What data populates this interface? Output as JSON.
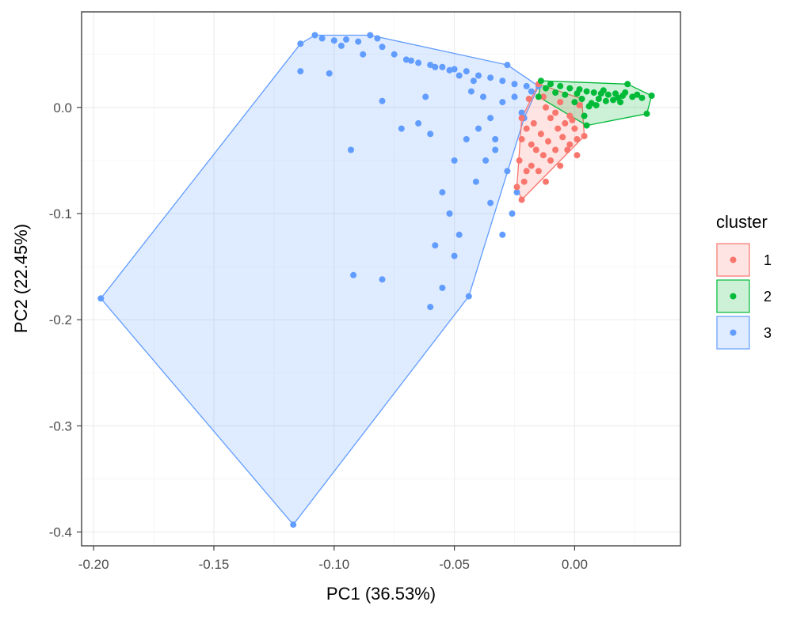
{
  "chart_data": {
    "type": "scatter",
    "xlabel": "PC1 (36.53%)",
    "ylabel": "PC2 (22.45%)",
    "xlim": [
      -0.205,
      0.044
    ],
    "ylim": [
      -0.413,
      0.09
    ],
    "x_ticks": [
      -0.2,
      -0.15,
      -0.1,
      -0.05,
      0.0
    ],
    "x_tick_labels": [
      "-0.20",
      "-0.15",
      "-0.10",
      "-0.05",
      "0.00"
    ],
    "y_ticks": [
      0.0,
      -0.1,
      -0.2,
      -0.3,
      -0.4
    ],
    "y_tick_labels": [
      "0.0",
      "-0.1",
      "-0.2",
      "-0.3",
      "-0.4"
    ],
    "grid": true,
    "legend": {
      "title": "cluster",
      "position": "right",
      "items": [
        {
          "label": "1",
          "color": "#F8766D"
        },
        {
          "label": "2",
          "color": "#00BA38"
        },
        {
          "label": "3",
          "color": "#619CFF"
        }
      ]
    },
    "series": [
      {
        "name": "1",
        "color": "#F8766D",
        "hull": [
          [
            -0.015,
            0.022
          ],
          [
            0.003,
            0.008
          ],
          [
            0.004,
            -0.027
          ],
          [
            -0.022,
            -0.087
          ],
          [
            -0.024,
            -0.075
          ],
          [
            -0.022,
            -0.01
          ]
        ],
        "points": [
          [
            -0.015,
            0.022
          ],
          [
            -0.013,
            0.01
          ],
          [
            -0.012,
            0.0
          ],
          [
            -0.01,
            -0.01
          ],
          [
            -0.008,
            -0.005
          ],
          [
            -0.006,
            0.005
          ],
          [
            -0.004,
            -0.015
          ],
          [
            -0.002,
            -0.008
          ],
          [
            0.0,
            -0.02
          ],
          [
            0.002,
            0.002
          ],
          [
            0.003,
            0.008
          ],
          [
            0.004,
            -0.027
          ],
          [
            0.001,
            -0.03
          ],
          [
            -0.002,
            -0.035
          ],
          [
            -0.005,
            -0.028
          ],
          [
            -0.008,
            -0.04
          ],
          [
            -0.011,
            -0.032
          ],
          [
            -0.013,
            -0.045
          ],
          [
            -0.016,
            -0.04
          ],
          [
            -0.018,
            -0.055
          ],
          [
            -0.02,
            -0.06
          ],
          [
            -0.021,
            -0.07
          ],
          [
            -0.022,
            -0.087
          ],
          [
            -0.024,
            -0.075
          ],
          [
            -0.023,
            -0.05
          ],
          [
            -0.022,
            -0.03
          ],
          [
            -0.022,
            -0.01
          ],
          [
            -0.019,
            0.008
          ],
          [
            -0.017,
            -0.015
          ],
          [
            -0.014,
            -0.025
          ],
          [
            -0.01,
            -0.05
          ],
          [
            -0.007,
            -0.02
          ],
          [
            -0.003,
            -0.04
          ],
          [
            -0.001,
            -0.012
          ],
          [
            0.001,
            -0.045
          ],
          [
            -0.015,
            -0.06
          ],
          [
            -0.018,
            -0.035
          ],
          [
            -0.02,
            -0.02
          ],
          [
            -0.012,
            -0.07
          ],
          [
            -0.006,
            -0.055
          ]
        ]
      },
      {
        "name": "2",
        "color": "#00BA38",
        "hull": [
          [
            -0.014,
            0.025
          ],
          [
            0.022,
            0.022
          ],
          [
            0.032,
            0.011
          ],
          [
            0.03,
            -0.006
          ],
          [
            0.005,
            -0.017
          ],
          [
            -0.015,
            0.01
          ]
        ],
        "points": [
          [
            -0.014,
            0.025
          ],
          [
            -0.01,
            0.022
          ],
          [
            -0.006,
            0.02
          ],
          [
            -0.002,
            0.018
          ],
          [
            0.002,
            0.017
          ],
          [
            0.005,
            0.015
          ],
          [
            0.008,
            0.014
          ],
          [
            0.011,
            0.013
          ],
          [
            0.014,
            0.012
          ],
          [
            0.017,
            0.013
          ],
          [
            0.02,
            0.011
          ],
          [
            0.022,
            0.022
          ],
          [
            0.024,
            0.01
          ],
          [
            0.026,
            0.012
          ],
          [
            0.028,
            0.009
          ],
          [
            0.032,
            0.011
          ],
          [
            0.03,
            -0.006
          ],
          [
            0.005,
            -0.017
          ],
          [
            0.0,
            0.005
          ],
          [
            0.003,
            0.008
          ],
          [
            -0.004,
            0.012
          ],
          [
            0.007,
            0.004
          ],
          [
            0.01,
            0.008
          ],
          [
            0.013,
            0.006
          ],
          [
            0.016,
            0.007
          ],
          [
            0.019,
            0.005
          ],
          [
            -0.008,
            0.014
          ],
          [
            -0.012,
            0.018
          ],
          [
            0.004,
            -0.008
          ],
          [
            0.006,
            0.001
          ],
          [
            0.009,
            0.002
          ],
          [
            -0.015,
            0.01
          ],
          [
            0.001,
            0.013
          ],
          [
            0.012,
            0.016
          ],
          [
            0.018,
            0.009
          ],
          [
            0.021,
            0.014
          ]
        ]
      },
      {
        "name": "3",
        "color": "#619CFF",
        "hull": [
          [
            -0.108,
            0.068
          ],
          [
            -0.085,
            0.068
          ],
          [
            -0.028,
            0.04
          ],
          [
            -0.015,
            0.02
          ],
          [
            -0.021,
            -0.01
          ],
          [
            -0.044,
            -0.178
          ],
          [
            -0.117,
            -0.393
          ],
          [
            -0.197,
            -0.18
          ],
          [
            -0.114,
            0.06
          ]
        ],
        "points": [
          [
            -0.108,
            0.068
          ],
          [
            -0.105,
            0.065
          ],
          [
            -0.1,
            0.063
          ],
          [
            -0.095,
            0.064
          ],
          [
            -0.09,
            0.062
          ],
          [
            -0.085,
            0.068
          ],
          [
            -0.082,
            0.065
          ],
          [
            -0.08,
            0.057
          ],
          [
            -0.075,
            0.05
          ],
          [
            -0.07,
            0.045
          ],
          [
            -0.065,
            0.042
          ],
          [
            -0.06,
            0.04
          ],
          [
            -0.055,
            0.038
          ],
          [
            -0.05,
            0.036
          ],
          [
            -0.045,
            0.034
          ],
          [
            -0.04,
            0.03
          ],
          [
            -0.035,
            0.028
          ],
          [
            -0.03,
            0.025
          ],
          [
            -0.028,
            0.04
          ],
          [
            -0.025,
            0.022
          ],
          [
            -0.02,
            0.02
          ],
          [
            -0.018,
            0.015
          ],
          [
            -0.015,
            0.02
          ],
          [
            -0.021,
            -0.01
          ],
          [
            -0.03,
            0.005
          ],
          [
            -0.035,
            -0.01
          ],
          [
            -0.04,
            -0.02
          ],
          [
            -0.045,
            -0.03
          ],
          [
            -0.05,
            -0.05
          ],
          [
            -0.055,
            -0.08
          ],
          [
            -0.058,
            -0.13
          ],
          [
            -0.06,
            -0.188
          ],
          [
            -0.044,
            -0.178
          ],
          [
            -0.048,
            -0.12
          ],
          [
            -0.052,
            -0.1
          ],
          [
            -0.114,
            0.034
          ],
          [
            -0.114,
            0.06
          ],
          [
            -0.102,
            0.032
          ],
          [
            -0.093,
            -0.04
          ],
          [
            -0.092,
            -0.158
          ],
          [
            -0.08,
            -0.162
          ],
          [
            -0.08,
            0.006
          ],
          [
            -0.072,
            -0.02
          ],
          [
            -0.065,
            -0.015
          ],
          [
            -0.06,
            -0.025
          ],
          [
            -0.117,
            -0.393
          ],
          [
            -0.197,
            -0.18
          ],
          [
            -0.055,
            -0.17
          ],
          [
            -0.05,
            -0.14
          ],
          [
            -0.062,
            0.01
          ],
          [
            -0.043,
            0.015
          ],
          [
            -0.038,
            0.01
          ],
          [
            -0.033,
            -0.04
          ],
          [
            -0.028,
            -0.06
          ],
          [
            -0.024,
            -0.08
          ],
          [
            -0.026,
            -0.1
          ],
          [
            -0.033,
            -0.03
          ],
          [
            -0.037,
            -0.05
          ],
          [
            -0.041,
            -0.07
          ],
          [
            -0.03,
            -0.12
          ],
          [
            -0.035,
            -0.09
          ],
          [
            -0.025,
            0.01
          ],
          [
            -0.022,
            -0.005
          ],
          [
            -0.042,
            0.025
          ],
          [
            -0.048,
            0.03
          ],
          [
            -0.052,
            0.035
          ],
          [
            -0.058,
            0.038
          ],
          [
            -0.068,
            0.044
          ],
          [
            -0.088,
            0.05
          ],
          [
            -0.097,
            0.058
          ]
        ]
      }
    ]
  }
}
